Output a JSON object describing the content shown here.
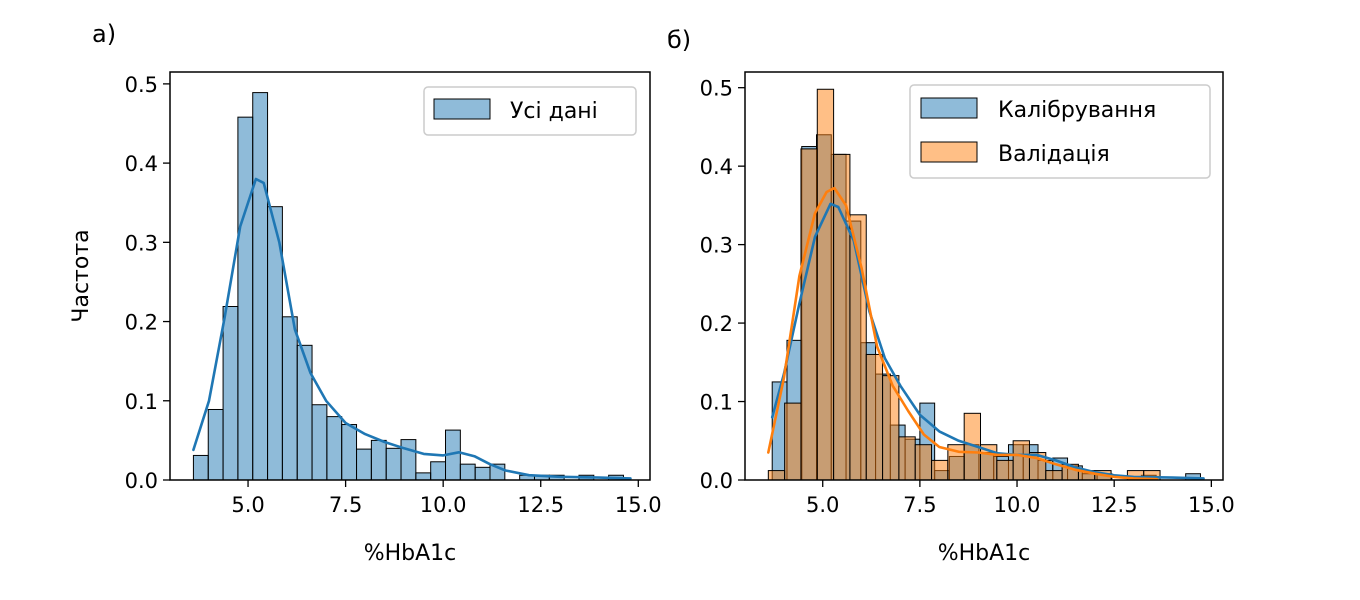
{
  "colors": {
    "blue_fill": "#1f77b4",
    "blue_fill_alpha": 0.5,
    "orange_fill": "#ff7f0e",
    "orange_fill_alpha": 0.5,
    "blue_line": "#1f77b4",
    "orange_line": "#ff7f0e",
    "bar_edge": "#000000"
  },
  "chart_data": [
    {
      "type": "bar",
      "panel_label": "а)",
      "xlabel": "%HbA1c",
      "ylabel": "Частота",
      "xlim": [
        3.0,
        15.3
      ],
      "ylim": [
        0,
        0.515
      ],
      "xticks": [
        5.0,
        7.5,
        10.0,
        12.5,
        15.0
      ],
      "xtick_labels": [
        "5.0",
        "7.5",
        "10.0",
        "12.5",
        "15.0"
      ],
      "yticks": [
        0.0,
        0.1,
        0.2,
        0.3,
        0.4,
        0.5
      ],
      "ytick_labels": [
        "0.0",
        "0.1",
        "0.2",
        "0.3",
        "0.4",
        "0.5"
      ],
      "legend_position": "top-right",
      "bin_width": 0.38,
      "series": [
        {
          "name": "Усі дані",
          "color_key": "blue",
          "bins": [
            3.6,
            3.98,
            4.36,
            4.74,
            5.12,
            5.5,
            5.88,
            6.26,
            6.64,
            7.02,
            7.4,
            7.78,
            8.16,
            8.54,
            8.92,
            9.3,
            9.68,
            10.06,
            10.44,
            10.82,
            11.2,
            11.58,
            11.96,
            12.34,
            12.72,
            13.1,
            13.48,
            13.86,
            14.24,
            14.62
          ],
          "values": [
            0.031,
            0.089,
            0.219,
            0.458,
            0.489,
            0.345,
            0.206,
            0.17,
            0.095,
            0.08,
            0.07,
            0.039,
            0.05,
            0.04,
            0.051,
            0.009,
            0.023,
            0.063,
            0.02,
            0.016,
            0.02,
            0.0,
            0.006,
            0.006,
            0.006,
            0.0,
            0.006,
            0.0,
            0.006,
            0.0
          ],
          "kde": {
            "x": [
              3.6,
              4.0,
              4.4,
              4.8,
              5.2,
              5.4,
              5.8,
              6.2,
              6.6,
              7.0,
              7.5,
              8.0,
              8.5,
              9.0,
              9.5,
              10.0,
              10.4,
              10.8,
              11.2,
              11.6,
              12.2,
              13.0,
              14.0,
              14.8
            ],
            "y": [
              0.038,
              0.1,
              0.205,
              0.32,
              0.38,
              0.375,
              0.3,
              0.19,
              0.135,
              0.1,
              0.072,
              0.058,
              0.048,
              0.04,
              0.033,
              0.031,
              0.035,
              0.03,
              0.02,
              0.012,
              0.006,
              0.004,
              0.003,
              0.002
            ]
          }
        }
      ]
    },
    {
      "type": "bar",
      "panel_label": "б)",
      "xlabel": "%HbA1c",
      "ylabel": "",
      "xlim": [
        3.0,
        15.3
      ],
      "ylim": [
        0,
        0.52
      ],
      "xticks": [
        5.0,
        7.5,
        10.0,
        12.5,
        15.0
      ],
      "xtick_labels": [
        "5.0",
        "7.5",
        "10.0",
        "12.5",
        "15.0"
      ],
      "yticks": [
        0.0,
        0.1,
        0.2,
        0.3,
        0.4,
        0.5
      ],
      "ytick_labels": [
        "0.0",
        "0.1",
        "0.2",
        "0.3",
        "0.4",
        "0.5"
      ],
      "legend_position": "top-right",
      "series": [
        {
          "name": "Калібрування",
          "color_key": "blue",
          "bin_width": 0.38,
          "bins": [
            3.7,
            4.08,
            4.46,
            4.84,
            5.22,
            5.6,
            5.98,
            6.36,
            6.74,
            7.12,
            7.5,
            7.88,
            8.26,
            8.64,
            9.02,
            9.4,
            9.78,
            10.16,
            10.54,
            10.92,
            11.3,
            11.68,
            12.06,
            12.44,
            12.82,
            13.2,
            13.58,
            13.96,
            14.34
          ],
          "values": [
            0.125,
            0.178,
            0.425,
            0.44,
            0.415,
            0.33,
            0.175,
            0.135,
            0.07,
            0.052,
            0.098,
            0.012,
            0.03,
            0.045,
            0.035,
            0.03,
            0.045,
            0.045,
            0.025,
            0.028,
            0.018,
            0.008,
            0.008,
            0.0,
            0.0,
            0.006,
            0.0,
            0.0,
            0.008
          ],
          "kde": {
            "x": [
              3.7,
              4.0,
              4.4,
              4.8,
              5.2,
              5.4,
              5.8,
              6.2,
              6.6,
              7.0,
              7.5,
              8.0,
              8.5,
              9.0,
              9.5,
              10.0,
              10.5,
              11.0,
              11.5,
              12.0,
              12.5,
              13.0,
              14.0,
              14.8
            ],
            "y": [
              0.08,
              0.135,
              0.225,
              0.31,
              0.352,
              0.348,
              0.305,
              0.215,
              0.155,
              0.12,
              0.083,
              0.062,
              0.05,
              0.042,
              0.034,
              0.032,
              0.032,
              0.025,
              0.016,
              0.01,
              0.006,
              0.004,
              0.003,
              0.002
            ]
          }
        },
        {
          "name": "Валідація",
          "color_key": "orange",
          "bin_width": 0.42,
          "bins": [
            3.6,
            4.02,
            4.44,
            4.86,
            5.28,
            5.7,
            6.12,
            6.54,
            6.96,
            7.38,
            7.8,
            8.22,
            8.64,
            9.06,
            9.48,
            9.9,
            10.32,
            10.74,
            11.16,
            11.58,
            12.0,
            12.42,
            12.84,
            13.26,
            13.68,
            14.1
          ],
          "values": [
            0.012,
            0.098,
            0.422,
            0.498,
            0.415,
            0.338,
            0.16,
            0.133,
            0.055,
            0.045,
            0.025,
            0.045,
            0.085,
            0.045,
            0.025,
            0.05,
            0.035,
            0.012,
            0.02,
            0.012,
            0.012,
            0.0,
            0.012,
            0.012,
            0.0,
            0.0
          ],
          "kde": {
            "x": [
              3.6,
              4.0,
              4.4,
              4.8,
              5.1,
              5.3,
              5.6,
              6.0,
              6.4,
              6.8,
              7.2,
              7.6,
              8.0,
              8.5,
              9.0,
              9.5,
              10.0,
              10.5,
              11.0,
              11.5,
              12.0,
              12.5,
              13.0,
              13.6
            ],
            "y": [
              0.035,
              0.13,
              0.26,
              0.34,
              0.367,
              0.372,
              0.35,
              0.27,
              0.17,
              0.12,
              0.088,
              0.058,
              0.042,
              0.036,
              0.035,
              0.032,
              0.032,
              0.028,
              0.02,
              0.013,
              0.008,
              0.004,
              0.002,
              0.001
            ]
          }
        }
      ]
    }
  ]
}
